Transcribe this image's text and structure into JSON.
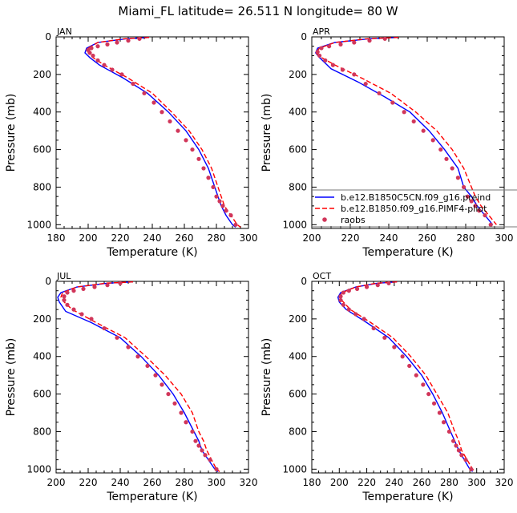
{
  "title": "Miami_FL   latitude= 26.511 N longitude= 80 W",
  "colors": {
    "model_a": "#0000ff",
    "model_b": "#ff0000",
    "raobs": "#d1365a",
    "legend_box": "#777777"
  },
  "legend": {
    "entries": [
      {
        "label": "b.e12.B1850C5CN.f09_g16.preind",
        "style": "solid",
        "color": "#0000ff"
      },
      {
        "label": "b.e12.B1850.f09_g16.PIMF4-pliot",
        "style": "dashed",
        "color": "#ff0000"
      },
      {
        "label": "raobs",
        "style": "dot",
        "color": "#d1365a"
      }
    ]
  },
  "chart_data": [
    {
      "type": "line",
      "panel": "JAN",
      "xlabel": "Temperature (K)",
      "ylabel": "Pressure (mb)",
      "xlim": [
        180,
        300
      ],
      "ylim": [
        1020,
        0
      ],
      "xticks": [
        180,
        200,
        220,
        240,
        260,
        280,
        300
      ],
      "yticks": [
        0,
        200,
        400,
        600,
        800,
        1000
      ],
      "grid": false,
      "series": [
        {
          "name": "b.e12.B1850C5CN.f09_g16.preind",
          "style": "solid",
          "x": [
            238,
            224,
            206,
            199,
            198,
            201,
            207,
            222,
            237,
            250,
            261,
            269,
            275,
            279,
            281,
            283,
            286,
            290,
            292
          ],
          "y": [
            3,
            10,
            30,
            60,
            85,
            110,
            150,
            220,
            300,
            400,
            500,
            600,
            700,
            800,
            850,
            900,
            950,
            1000,
            1013
          ]
        },
        {
          "name": "b.e12.B1850.f09_g16.PIMF4-pliot",
          "style": "dashed",
          "x": [
            238,
            223,
            206,
            200,
            200,
            203,
            210,
            225,
            240,
            252,
            263,
            271,
            277,
            281,
            283,
            285,
            289,
            293,
            295
          ],
          "y": [
            3,
            10,
            30,
            60,
            85,
            110,
            150,
            220,
            300,
            400,
            500,
            600,
            700,
            800,
            850,
            900,
            950,
            1000,
            1013
          ]
        },
        {
          "name": "raobs",
          "style": "dot",
          "x": [
            232,
            225,
            218,
            212,
            206,
            202,
            200,
            201,
            203,
            206,
            210,
            215,
            221,
            228,
            235,
            241,
            246,
            251,
            256,
            261,
            265,
            269,
            272,
            275,
            278,
            280,
            282,
            284,
            286,
            289,
            292
          ],
          "y": [
            10,
            20,
            30,
            40,
            50,
            60,
            70,
            85,
            100,
            125,
            150,
            175,
            200,
            250,
            300,
            350,
            400,
            450,
            500,
            550,
            600,
            650,
            700,
            750,
            800,
            850,
            875,
            900,
            925,
            950,
            1000
          ]
        }
      ]
    },
    {
      "type": "line",
      "panel": "APR",
      "xlabel": "Temperature (K)",
      "ylabel": "Pressure (mb)",
      "xlim": [
        200,
        300
      ],
      "ylim": [
        1020,
        0
      ],
      "xticks": [
        200,
        220,
        240,
        260,
        280,
        300
      ],
      "yticks": [
        0,
        200,
        400,
        600,
        800,
        1000
      ],
      "grid": false,
      "series": [
        {
          "name": "b.e12.B1850C5CN.f09_g16.preind",
          "style": "solid",
          "x": [
            245,
            230,
            212,
            203,
            202,
            204,
            210,
            224,
            238,
            251,
            261,
            269,
            276,
            279,
            283,
            286,
            290,
            294
          ],
          "y": [
            3,
            10,
            30,
            60,
            85,
            110,
            170,
            240,
            320,
            400,
            500,
            600,
            700,
            800,
            850,
            900,
            950,
            1000
          ]
        },
        {
          "name": "b.e12.B1850.f09_g16.PIMF4-pliot",
          "style": "dashed",
          "x": [
            245,
            229,
            212,
            204,
            202,
            205,
            212,
            226,
            241,
            254,
            265,
            273,
            279,
            283,
            285,
            288,
            292,
            296
          ],
          "y": [
            3,
            10,
            30,
            60,
            85,
            110,
            150,
            220,
            300,
            400,
            500,
            600,
            700,
            800,
            850,
            900,
            950,
            1000
          ]
        },
        {
          "name": "raobs",
          "style": "dot",
          "x": [
            238,
            230,
            222,
            215,
            209,
            205,
            203,
            204,
            207,
            211,
            216,
            222,
            228,
            235,
            242,
            248,
            253,
            258,
            263,
            267,
            270,
            273,
            276,
            279,
            281,
            283,
            285,
            287,
            290,
            293
          ],
          "y": [
            10,
            20,
            30,
            40,
            50,
            60,
            80,
            100,
            125,
            150,
            175,
            200,
            250,
            300,
            350,
            400,
            450,
            500,
            550,
            600,
            650,
            700,
            750,
            800,
            850,
            875,
            900,
            925,
            950,
            1000
          ]
        }
      ]
    },
    {
      "type": "line",
      "panel": "JUL",
      "xlabel": "Temperature (K)",
      "ylabel": "Pressure (mb)",
      "xlim": [
        200,
        320
      ],
      "ylim": [
        1020,
        0
      ],
      "xticks": [
        200,
        220,
        240,
        260,
        280,
        300,
        320
      ],
      "yticks": [
        0,
        200,
        400,
        600,
        800,
        1000
      ],
      "grid": false,
      "series": [
        {
          "name": "b.e12.B1850C5CN.f09_g16.preind",
          "style": "solid",
          "x": [
            248,
            232,
            213,
            203,
            201,
            202,
            206,
            222,
            240,
            253,
            264,
            273,
            280,
            286,
            289,
            291,
            295,
            299,
            301
          ],
          "y": [
            3,
            10,
            30,
            60,
            85,
            110,
            160,
            220,
            300,
            400,
            500,
            600,
            700,
            800,
            850,
            900,
            950,
            1000,
            1013
          ]
        },
        {
          "name": "b.e12.B1850.f09_g16.PIMF4-pliot",
          "style": "dashed",
          "x": [
            248,
            231,
            213,
            204,
            203,
            205,
            210,
            225,
            243,
            256,
            268,
            278,
            285,
            289,
            292,
            294,
            297,
            300,
            302
          ],
          "y": [
            3,
            10,
            30,
            60,
            85,
            110,
            150,
            220,
            300,
            400,
            500,
            600,
            700,
            800,
            850,
            900,
            950,
            1000,
            1013
          ]
        },
        {
          "name": "raobs",
          "style": "dot",
          "x": [
            240,
            232,
            224,
            217,
            211,
            207,
            205,
            205,
            207,
            211,
            216,
            222,
            230,
            238,
            245,
            251,
            257,
            262,
            266,
            270,
            274,
            278,
            281,
            285,
            287,
            289,
            291,
            293,
            296,
            300
          ],
          "y": [
            10,
            20,
            30,
            40,
            50,
            60,
            80,
            100,
            125,
            150,
            175,
            200,
            250,
            300,
            350,
            400,
            450,
            500,
            550,
            600,
            650,
            700,
            750,
            800,
            850,
            875,
            900,
            925,
            950,
            1000
          ]
        }
      ]
    },
    {
      "type": "line",
      "panel": "OCT",
      "xlabel": "Temperature (K)",
      "ylabel": "Pressure (mb)",
      "xlim": [
        180,
        320
      ],
      "ylim": [
        1020,
        0
      ],
      "xticks": [
        180,
        200,
        220,
        240,
        260,
        280,
        300,
        320
      ],
      "yticks": [
        0,
        200,
        400,
        600,
        800,
        1000
      ],
      "grid": false,
      "series": [
        {
          "name": "b.e12.B1850C5CN.f09_g16.preind",
          "style": "solid",
          "x": [
            242,
            228,
            212,
            201,
            199,
            200,
            205,
            220,
            236,
            249,
            260,
            268,
            275,
            281,
            284,
            287,
            291,
            295,
            297
          ],
          "y": [
            3,
            10,
            30,
            60,
            85,
            110,
            150,
            220,
            300,
            400,
            500,
            600,
            700,
            800,
            850,
            900,
            950,
            1000,
            1013
          ]
        },
        {
          "name": "b.e12.B1850.f09_g16.PIMF4-pliot",
          "style": "dashed",
          "x": [
            242,
            227,
            212,
            202,
            200,
            203,
            208,
            223,
            239,
            252,
            263,
            271,
            279,
            284,
            287,
            289,
            293,
            297,
            299
          ],
          "y": [
            3,
            10,
            30,
            60,
            85,
            110,
            150,
            220,
            300,
            400,
            500,
            600,
            700,
            800,
            850,
            900,
            950,
            1000,
            1013
          ]
        },
        {
          "name": "raobs",
          "style": "dot",
          "x": [
            236,
            228,
            220,
            213,
            207,
            203,
            201,
            201,
            203,
            207,
            212,
            218,
            225,
            233,
            240,
            246,
            251,
            256,
            261,
            265,
            269,
            273,
            276,
            280,
            283,
            285,
            287,
            289,
            292,
            296
          ],
          "y": [
            10,
            20,
            30,
            40,
            50,
            60,
            80,
            100,
            125,
            150,
            175,
            200,
            250,
            300,
            350,
            400,
            450,
            500,
            550,
            600,
            650,
            700,
            750,
            800,
            850,
            875,
            900,
            925,
            950,
            1000
          ]
        }
      ]
    }
  ]
}
